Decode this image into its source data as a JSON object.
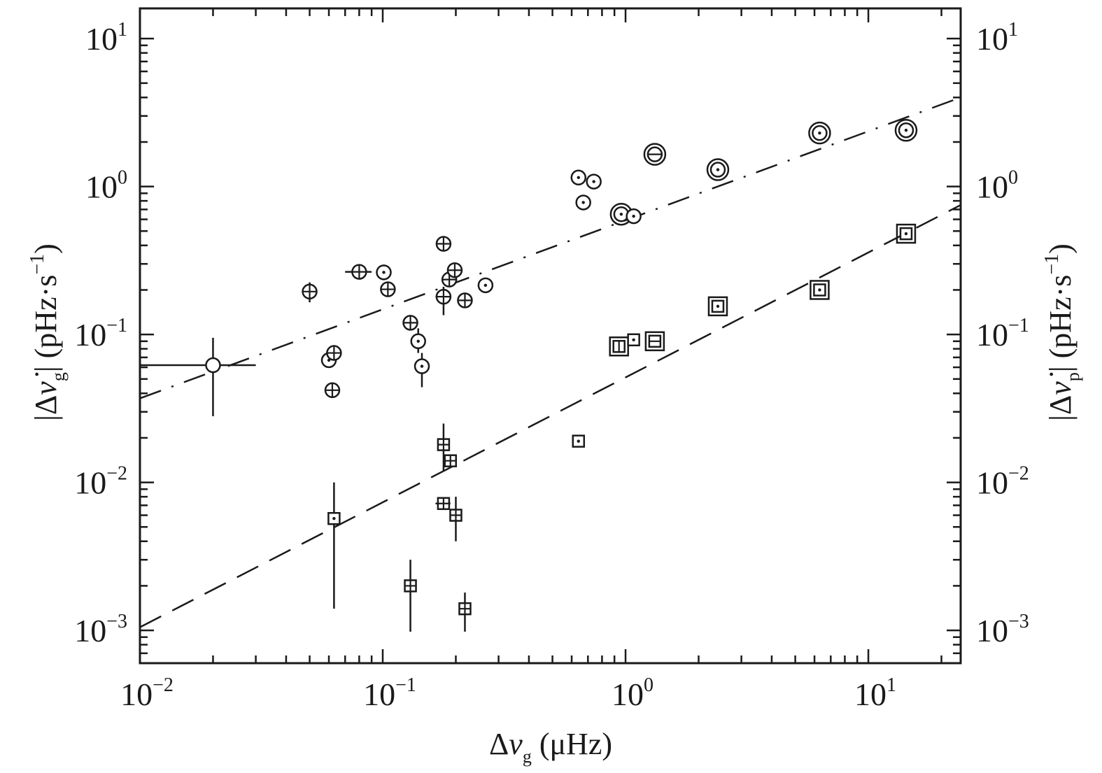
{
  "chart_data": {
    "type": "scatter",
    "x_scale": "log",
    "y_scale": "log",
    "xlim": [
      0.01,
      24
    ],
    "ylim": [
      0.0006,
      16
    ],
    "xlabel": {
      "delta": "Δ",
      "nu": "ν",
      "sub": "g",
      "unit": " (μHz)"
    },
    "ylabel_left": {
      "open": "|Δ",
      "nu": "ν̇",
      "sub": "g",
      "close": "| (pHz·s",
      "exp": "−1",
      "end": ")"
    },
    "ylabel_right": {
      "open": "|Δ",
      "nu": "ν̇",
      "sub": "p",
      "close": "| (pHz·s",
      "exp": "−1",
      "end": ")"
    },
    "x_ticks": [
      {
        "value": 0.01,
        "base": "10",
        "exp": "−2"
      },
      {
        "value": 0.1,
        "base": "10",
        "exp": "−1"
      },
      {
        "value": 1,
        "base": "10",
        "exp": "0"
      },
      {
        "value": 10,
        "base": "10",
        "exp": "1"
      }
    ],
    "y_ticks": [
      {
        "value": 10,
        "base": "10",
        "exp": "1"
      },
      {
        "value": 1,
        "base": "10",
        "exp": "0"
      },
      {
        "value": 0.1,
        "base": "10",
        "exp": "−1"
      },
      {
        "value": 0.01,
        "base": "10",
        "exp": "−2"
      },
      {
        "value": 0.001,
        "base": "10",
        "exp": "−3"
      }
    ],
    "series": [
      {
        "name": "g-mode rate change (circles)",
        "marker": "circle",
        "points": [
          {
            "x": 0.02,
            "y": 0.062,
            "xerr": [
              0.01,
              0.03
            ],
            "yerr": [
              0.028,
              0.095
            ],
            "inner": "none"
          },
          {
            "x": 0.05,
            "y": 0.195,
            "yerr": [
              0.165,
              0.225
            ],
            "inner": "plus"
          },
          {
            "x": 0.06,
            "y": 0.067,
            "inner": "dot"
          },
          {
            "x": 0.062,
            "y": 0.042,
            "inner": "plus"
          },
          {
            "x": 0.063,
            "y": 0.075,
            "inner": "plus"
          },
          {
            "x": 0.08,
            "y": 0.265,
            "xerr": [
              0.07,
              0.09
            ],
            "inner": "plus"
          },
          {
            "x": 0.101,
            "y": 0.263,
            "inner": "dot"
          },
          {
            "x": 0.105,
            "y": 0.202,
            "inner": "plus"
          },
          {
            "x": 0.13,
            "y": 0.12,
            "inner": "plus"
          },
          {
            "x": 0.14,
            "y": 0.09,
            "yerr": [
              0.075,
              0.11
            ],
            "inner": "dot"
          },
          {
            "x": 0.145,
            "y": 0.061,
            "yerr": [
              0.044,
              0.075
            ],
            "inner": "dot"
          },
          {
            "x": 0.178,
            "y": 0.41,
            "inner": "plus"
          },
          {
            "x": 0.178,
            "y": 0.18,
            "xerr": [
              0.165,
              0.19
            ],
            "yerr": [
              0.135,
              0.21
            ],
            "inner": "plus"
          },
          {
            "x": 0.188,
            "y": 0.235,
            "inner": "plus"
          },
          {
            "x": 0.198,
            "y": 0.272,
            "inner": "plus"
          },
          {
            "x": 0.218,
            "y": 0.17,
            "inner": "plus"
          },
          {
            "x": 0.265,
            "y": 0.215,
            "inner": "dot"
          },
          {
            "x": 0.64,
            "y": 1.15,
            "inner": "dot"
          },
          {
            "x": 0.67,
            "y": 0.78,
            "inner": "dot"
          },
          {
            "x": 0.74,
            "y": 1.08,
            "inner": "dot"
          },
          {
            "x": 0.96,
            "y": 0.65,
            "inner": "dot",
            "ring": true
          },
          {
            "x": 1.08,
            "y": 0.63,
            "inner": "dot"
          },
          {
            "x": 1.32,
            "y": 1.65,
            "inner": "minus",
            "ring": true
          },
          {
            "x": 2.4,
            "y": 1.3,
            "inner": "dot",
            "ring": true
          },
          {
            "x": 6.3,
            "y": 2.3,
            "inner": "dot",
            "ring": true
          },
          {
            "x": 14.3,
            "y": 2.4,
            "inner": "dot",
            "ring": true
          }
        ]
      },
      {
        "name": "p-mode rate change (squares)",
        "marker": "square",
        "points": [
          {
            "x": 0.063,
            "y": 0.0057,
            "yerr": [
              0.0014,
              0.01
            ],
            "inner": "dot"
          },
          {
            "x": 0.13,
            "y": 0.002,
            "yerr": [
              0.00098,
              0.003
            ],
            "inner": "plus"
          },
          {
            "x": 0.178,
            "y": 0.018,
            "yerr": [
              0.012,
              0.025
            ],
            "inner": "plus"
          },
          {
            "x": 0.178,
            "y": 0.0072,
            "xerr": [
              0.165,
              0.19
            ],
            "inner": "plus"
          },
          {
            "x": 0.19,
            "y": 0.014,
            "inner": "plus"
          },
          {
            "x": 0.2,
            "y": 0.006,
            "yerr": [
              0.004,
              0.008
            ],
            "inner": "plus"
          },
          {
            "x": 0.218,
            "y": 0.0014,
            "yerr": [
              0.00098,
              0.0018
            ],
            "inner": "plus"
          },
          {
            "x": 0.64,
            "y": 0.019,
            "inner": "dot"
          },
          {
            "x": 0.94,
            "y": 0.083,
            "inner": "bar",
            "ring": true
          },
          {
            "x": 1.08,
            "y": 0.092,
            "inner": "dot"
          },
          {
            "x": 1.32,
            "y": 0.09,
            "inner": "minus",
            "ring": true
          },
          {
            "x": 2.4,
            "y": 0.155,
            "inner": "dot",
            "ring": true
          },
          {
            "x": 6.3,
            "y": 0.2,
            "inner": "dot",
            "ring": true
          },
          {
            "x": 14.3,
            "y": 0.48,
            "inner": "dot",
            "ring": true
          }
        ]
      }
    ],
    "fit_lines": [
      {
        "name": "g-mode fit",
        "style": "dash-dot",
        "x": [
          0.01,
          24
        ],
        "y": [
          0.037,
          4.0
        ]
      },
      {
        "name": "p-mode fit",
        "style": "dashed",
        "x": [
          0.01,
          24
        ],
        "y": [
          0.00105,
          0.75
        ]
      }
    ]
  }
}
